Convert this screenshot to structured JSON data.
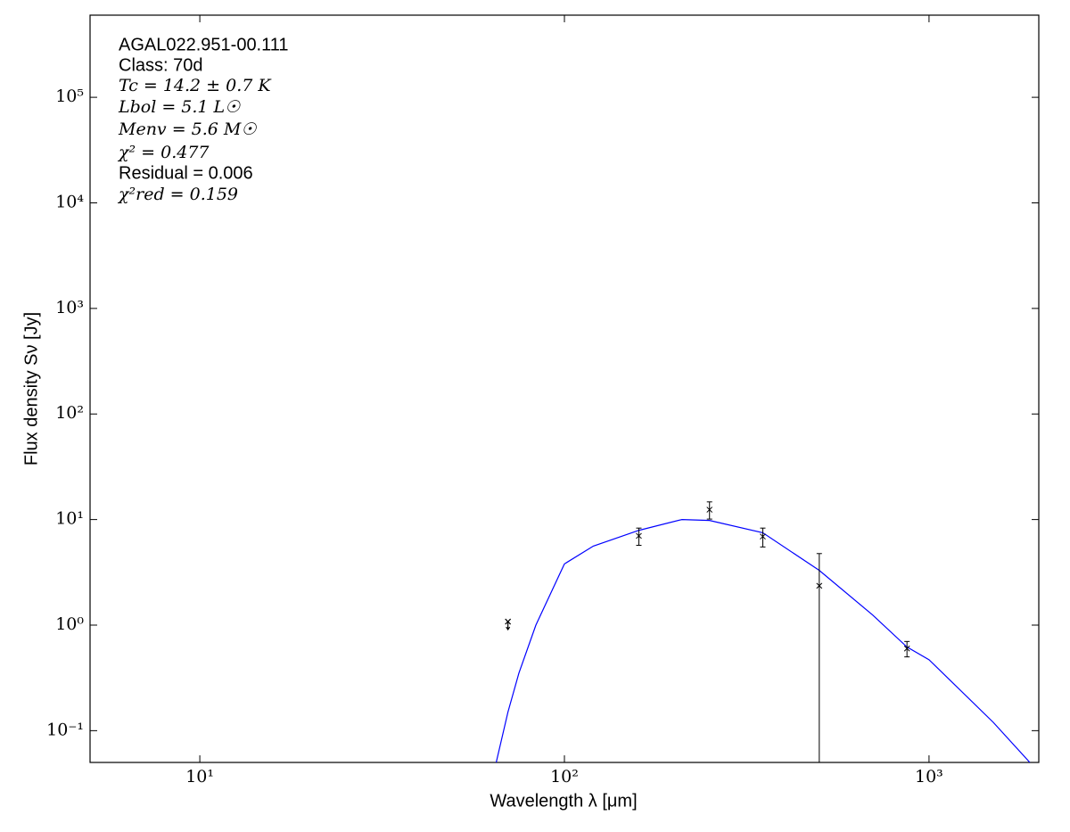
{
  "chart_data": {
    "type": "line",
    "xlog": true,
    "ylog": true,
    "xlim": [
      5,
      2000
    ],
    "ylim": [
      0.05,
      600000
    ],
    "xticks": [
      {
        "value": 10,
        "label": "10¹"
      },
      {
        "value": 100,
        "label": "10²"
      },
      {
        "value": 1000,
        "label": "10³"
      }
    ],
    "yticks": [
      {
        "value": 0.1,
        "label": "10⁻¹"
      },
      {
        "value": 1,
        "label": "10⁰"
      },
      {
        "value": 10,
        "label": "10¹"
      },
      {
        "value": 100,
        "label": "10²"
      },
      {
        "value": 1000,
        "label": "10³"
      },
      {
        "value": 10000,
        "label": "10⁴"
      },
      {
        "value": 100000,
        "label": "10⁵"
      }
    ],
    "xlabel": "Wavelength λ [μm]",
    "ylabel": "Flux density Sν [Jy]",
    "annotations": [
      "AGAL022.951-00.111",
      "Class: 70d",
      "Tc = 14.2 ± 0.7 K",
      "Lbol = 5.1 L☉",
      "Menv = 5.6 M☉",
      "χ² = 0.477",
      "Residual = 0.006",
      "χ²red = 0.159"
    ],
    "series": [
      {
        "color": "#0000ff",
        "x": [
          65,
          70,
          75,
          83.5,
          100,
          120,
          160,
          210,
          250,
          350,
          500,
          700,
          870,
          1000,
          1500,
          1890
        ],
        "values": [
          0.05,
          0.15,
          0.35,
          1.0,
          3.8,
          5.6,
          7.9,
          10,
          9.8,
          7.5,
          3.3,
          1.25,
          0.62,
          0.47,
          0.12,
          0.05
        ]
      }
    ],
    "points": {
      "color": "#000000",
      "x": [
        160,
        250,
        350,
        500,
        870
      ],
      "values": [
        7.0,
        12.4,
        6.9,
        2.36,
        0.6
      ],
      "errors": [
        1.3,
        2.3,
        1.4,
        2.4,
        0.1
      ]
    },
    "upper_limits": {
      "color": "#000000",
      "x": [
        70
      ],
      "values": [
        1.08
      ]
    }
  }
}
